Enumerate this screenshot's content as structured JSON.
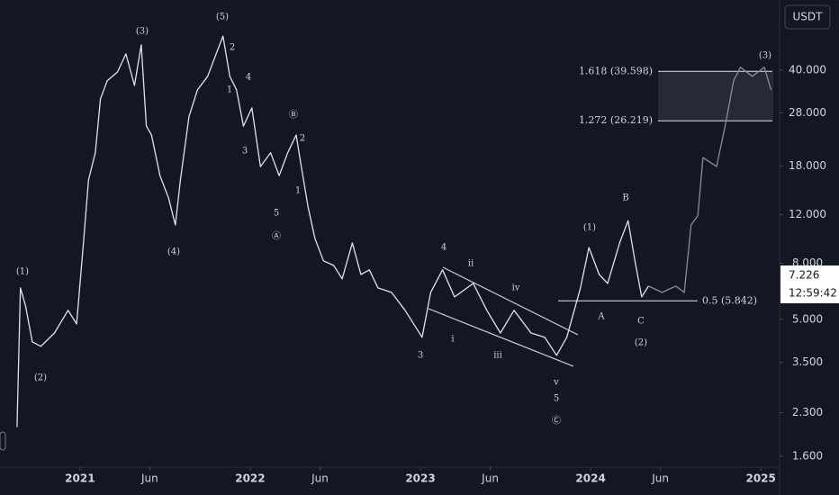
{
  "chart_data": {
    "type": "line",
    "currency": "USDT",
    "log": true,
    "grid": false,
    "xlim": [
      2020.53,
      2025.11
    ],
    "ylim": [
      1.45,
      71.8
    ],
    "xticks": [
      2021,
      {
        "value": 2021.41,
        "label": "Jun"
      },
      2022,
      {
        "value": 2022.41,
        "label": "Jun"
      },
      2023,
      {
        "value": 2023.41,
        "label": "Jun"
      },
      2024,
      {
        "value": 2024.41,
        "label": "Jun"
      },
      2025
    ],
    "yticks": [
      {
        "value": 40,
        "label": "40.000"
      },
      {
        "value": 28,
        "label": "28.000"
      },
      {
        "value": 18,
        "label": "18.000"
      },
      {
        "value": 12,
        "label": "12.000"
      },
      {
        "value": 8,
        "label": "8.000"
      },
      {
        "value": 5,
        "label": "5.000"
      },
      {
        "value": 3.5,
        "label": "3.500"
      },
      {
        "value": 2.3,
        "label": "2.300"
      },
      {
        "value": 1.6,
        "label": "1.600"
      }
    ],
    "series": [
      {
        "color": "#e0e3eb",
        "x": [
          2020.63,
          2020.65,
          2020.68,
          2020.72,
          2020.77,
          2020.85,
          2020.93,
          2020.98,
          2021.02,
          2021.05,
          2021.09,
          2021.12,
          2021.16,
          2021.22,
          2021.27,
          2021.32,
          2021.36,
          2021.39,
          2021.42,
          2021.47,
          2021.52,
          2021.56,
          2021.59,
          2021.64,
          2021.69,
          2021.75,
          2021.8,
          2021.84,
          2021.88,
          2021.92,
          2021.96,
          2022.01,
          2022.06,
          2022.12,
          2022.17,
          2022.22,
          2022.27,
          2022.3,
          2022.34,
          2022.38,
          2022.43,
          2022.49,
          2022.54,
          2022.6,
          2022.65,
          2022.7,
          2022.75,
          2022.83,
          2022.91,
          2023.01,
          2023.06,
          2023.13,
          2023.2,
          2023.31,
          2023.39,
          2023.47,
          2023.55,
          2023.65,
          2023.73,
          2023.8,
          2023.86,
          2023.94,
          2023.99,
          2024.05,
          2024.1,
          2024.17,
          2024.22,
          2024.26,
          2024.3,
          2024.34
        ],
        "values": [
          2.04,
          6.51,
          5.6,
          4.15,
          4.0,
          4.47,
          5.4,
          4.82,
          9.47,
          16.0,
          20.1,
          31.5,
          36.6,
          39.4,
          45.8,
          35.2,
          49.4,
          25.1,
          23.3,
          16.6,
          13.8,
          11.0,
          16.0,
          27.1,
          33.9,
          38.0,
          45.8,
          53.2,
          38.0,
          33.9,
          25.1,
          29.2,
          17.9,
          20.1,
          16.6,
          20.1,
          23.3,
          17.9,
          12.8,
          9.84,
          8.16,
          7.85,
          7.02,
          9.47,
          7.28,
          7.57,
          6.51,
          6.27,
          5.4,
          4.31,
          6.27,
          7.57,
          6.04,
          6.76,
          5.4,
          4.47,
          5.4,
          4.47,
          4.31,
          3.71,
          4.31,
          6.51,
          9.12,
          7.28,
          6.76,
          9.47,
          11.4,
          8.16,
          6.04,
          6.61
        ]
      },
      {
        "color": "#8a8d96",
        "x": [
          2024.34,
          2024.42,
          2024.5,
          2024.55,
          2024.59,
          2024.63,
          2024.66,
          2024.74,
          2024.79,
          2024.84,
          2024.88,
          2024.95,
          2025.02,
          2025.06
        ],
        "values": [
          6.61,
          6.27,
          6.61,
          6.27,
          11.0,
          11.9,
          19.3,
          17.9,
          25.1,
          36.6,
          41.0,
          38.0,
          41.0,
          33.9
        ]
      }
    ],
    "levels": [
      {
        "value": 39.598,
        "label": "1.618 (39.598)"
      },
      {
        "value": 26.219,
        "label": "1.272 (26.219)"
      },
      {
        "value": 5.842,
        "label": "0.5 (5.842)"
      }
    ],
    "last_price": 7.226,
    "countdown": "12:59:42",
    "annotations": [
      "(1)",
      "(2)",
      "(3)",
      "(4)",
      "(5)",
      "2",
      "1",
      "4",
      "3",
      "Ⓑ",
      "2",
      "1",
      "5",
      "Ⓐ",
      "4",
      "ii",
      "iv",
      "i",
      "iii",
      "3",
      "v",
      "5",
      "Ⓒ",
      "(1)",
      "B",
      "A",
      "C",
      "(2)",
      "(3)"
    ]
  }
}
